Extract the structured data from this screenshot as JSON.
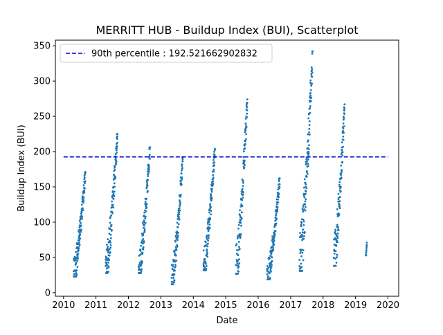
{
  "chart_data": {
    "type": "scatter",
    "title": "MERRITT HUB - Buildup Index (BUI), Scatterplot",
    "xlabel": "Date",
    "ylabel": "Buildup Index (BUI)",
    "xlim": [
      "2009-10-01",
      "2020-05-01"
    ],
    "ylim": [
      -5,
      358
    ],
    "x_ticks": [
      "2010",
      "2011",
      "2012",
      "2013",
      "2014",
      "2015",
      "2016",
      "2017",
      "2018",
      "2019",
      "2020"
    ],
    "y_ticks": [
      0,
      50,
      100,
      150,
      200,
      250,
      300,
      350
    ],
    "grid": false,
    "legend_position": "upper left",
    "point_color": "#1f77b4",
    "reference_line": {
      "label": "90th percentile : 192.521662902832",
      "value": 192.521662902832,
      "color": "#0000cc",
      "style": "dashed",
      "x_range": [
        "2010-01-01",
        "2020-01-01"
      ]
    },
    "seasons": [
      {
        "year": 2010,
        "start": "2010-04-25",
        "end": "2010-09-05",
        "min": 23,
        "max": 171
      },
      {
        "year": 2011,
        "start": "2011-04-20",
        "end": "2011-08-31",
        "min": 28,
        "max": 225
      },
      {
        "year": 2012,
        "start": "2012-04-25",
        "end": "2012-09-01",
        "min": 28,
        "max": 206
      },
      {
        "year": 2013,
        "start": "2013-05-01",
        "end": "2013-09-05",
        "min": 12,
        "max": 192
      },
      {
        "year": 2014,
        "start": "2014-04-25",
        "end": "2014-09-01",
        "min": 32,
        "max": 204
      },
      {
        "year": 2015,
        "start": "2015-04-25",
        "end": "2015-09-01",
        "min": 27,
        "max": 274
      },
      {
        "year": 2016,
        "start": "2016-04-10",
        "end": "2016-08-31",
        "min": 19,
        "max": 162
      },
      {
        "year": 2017,
        "start": "2017-04-10",
        "end": "2017-09-05",
        "min": 31,
        "max": 342
      },
      {
        "year": 2018,
        "start": "2018-05-01",
        "end": "2018-09-01",
        "min": 38,
        "max": 267
      },
      {
        "year": 2019,
        "start": "2019-04-28",
        "end": "2019-05-08",
        "min": 53,
        "max": 71
      }
    ]
  }
}
